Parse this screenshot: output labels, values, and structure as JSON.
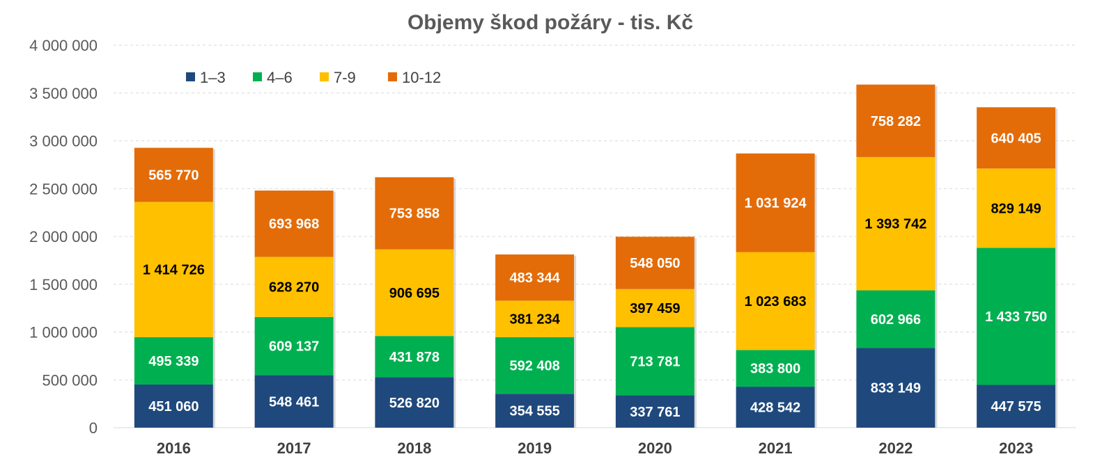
{
  "chart_data": {
    "type": "bar",
    "stacked": true,
    "title": "Objemy škod požáry - tis. Kč",
    "xlabel": "",
    "ylabel": "",
    "categories": [
      "2016",
      "2017",
      "2018",
      "2019",
      "2020",
      "2021",
      "2022",
      "2023"
    ],
    "ylim": [
      0,
      4000000
    ],
    "yticks": [
      {
        "value": 0,
        "label": "0"
      },
      {
        "value": 500000,
        "label": "500 000"
      },
      {
        "value": 1000000,
        "label": "1 000 000"
      },
      {
        "value": 1500000,
        "label": "1 500 000"
      },
      {
        "value": 2000000,
        "label": "2 000 000"
      },
      {
        "value": 2500000,
        "label": "2 500 000"
      },
      {
        "value": 3000000,
        "label": "3 000 000"
      },
      {
        "value": 3500000,
        "label": "3 500 000"
      },
      {
        "value": 4000000,
        "label": "4 000 000"
      }
    ],
    "grid": true,
    "legend_position": "top-left",
    "series": [
      {
        "name": "1–3",
        "color": "#1F497D",
        "label_color": "#FFFFFF",
        "values": [
          451060,
          548461,
          526820,
          354555,
          337761,
          428542,
          833149,
          447575
        ],
        "labels": [
          "451 060",
          "548 461",
          "526 820",
          "354 555",
          "337 761",
          "428 542",
          "833 149",
          "447 575"
        ]
      },
      {
        "name": "4–6",
        "color": "#00B050",
        "label_color": "#FFFFFF",
        "values": [
          495339,
          609137,
          431878,
          592408,
          713781,
          383800,
          602966,
          1433750
        ],
        "labels": [
          "495 339",
          "609 137",
          "431 878",
          "592 408",
          "713 781",
          "383 800",
          "602 966",
          "1 433 750"
        ]
      },
      {
        "name": "7-9",
        "color": "#FFC000",
        "label_color": "#000000",
        "values": [
          1414726,
          628270,
          906695,
          381234,
          397459,
          1023683,
          1393742,
          829149
        ],
        "labels": [
          "1 414 726",
          "628 270",
          "906 695",
          "381 234",
          "397 459",
          "1 023 683",
          "1 393 742",
          "829 149"
        ]
      },
      {
        "name": "10-12",
        "color": "#E36C09",
        "label_color": "#FFFFFF",
        "values": [
          565770,
          693968,
          753858,
          483344,
          548050,
          1031924,
          758282,
          640405
        ],
        "labels": [
          "565 770",
          "693 968",
          "753 858",
          "483 344",
          "548 050",
          "1 031 924",
          "758 282",
          "640 405"
        ]
      }
    ]
  }
}
